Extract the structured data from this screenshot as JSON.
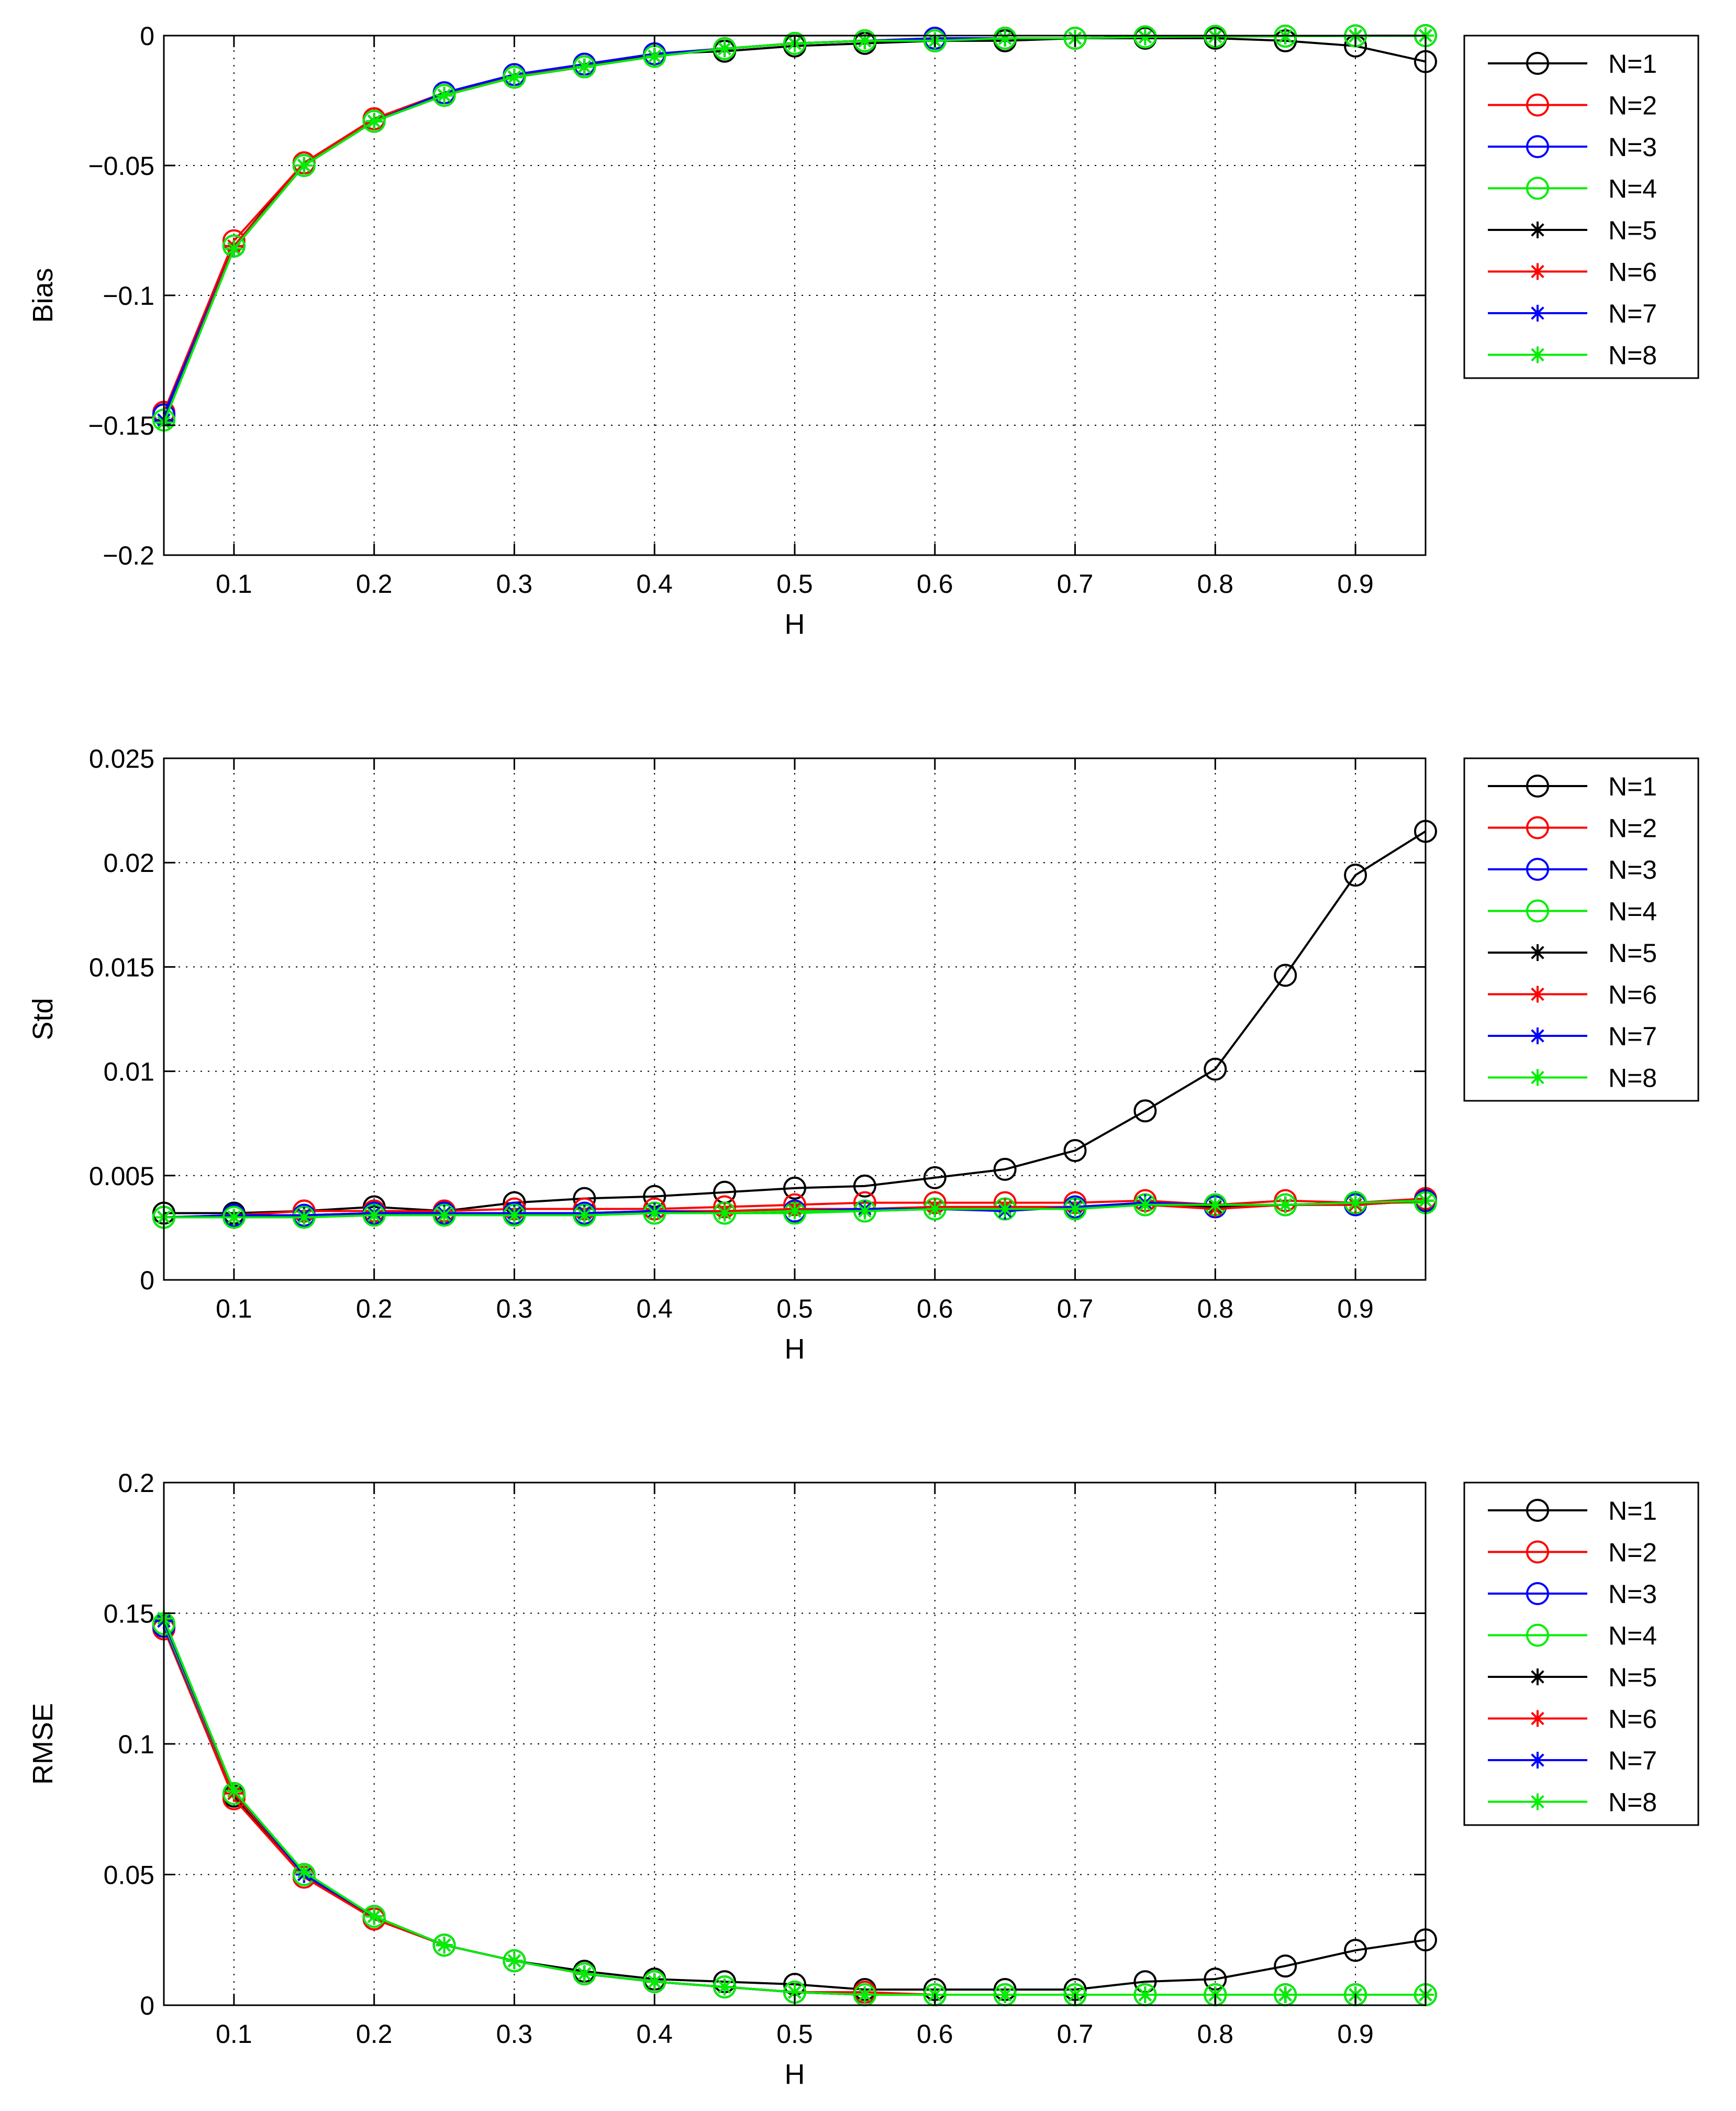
{
  "chart_data": [
    {
      "type": "line",
      "title": "",
      "xlabel": "H",
      "ylabel": "Bias",
      "xlim": [
        0.05,
        0.95
      ],
      "ylim": [
        -0.2,
        0
      ],
      "grid": true,
      "legend_position": "outside-right",
      "x": [
        0.05,
        0.1,
        0.15,
        0.2,
        0.25,
        0.3,
        0.35,
        0.4,
        0.45,
        0.5,
        0.55,
        0.6,
        0.65,
        0.7,
        0.75,
        0.8,
        0.85,
        0.9,
        0.95
      ],
      "xticks": [
        0.1,
        0.2,
        0.3,
        0.4,
        0.5,
        0.6,
        0.7,
        0.8,
        0.9
      ],
      "xtick_labels": [
        "0.1",
        "0.2",
        "0.3",
        "0.4",
        "0.5",
        "0.6",
        "0.7",
        "0.8",
        "0.9"
      ],
      "yticks": [
        -0.2,
        -0.15,
        -0.1,
        -0.05,
        0
      ],
      "ytick_labels": [
        "−0.2",
        "−0.15",
        "−0.1",
        "−0.05",
        "0"
      ],
      "series": [
        {
          "name": "N=1",
          "color": "#000000",
          "marker": "circle",
          "values": [
            -0.146,
            -0.081,
            -0.049,
            -0.032,
            -0.023,
            -0.016,
            -0.012,
            -0.007,
            -0.006,
            -0.004,
            -0.003,
            -0.002,
            -0.002,
            -0.001,
            -0.001,
            -0.001,
            -0.002,
            -0.004,
            -0.01
          ]
        },
        {
          "name": "N=2",
          "color": "#ff0000",
          "marker": "circle",
          "values": [
            -0.145,
            -0.079,
            -0.049,
            -0.032,
            -0.022,
            -0.016,
            -0.011,
            -0.007,
            -0.005,
            -0.003,
            -0.002,
            -0.001,
            -0.001,
            -0.001,
            -0.0005,
            -0.0003,
            -0.0002,
            -0.0001,
            0
          ]
        },
        {
          "name": "N=3",
          "color": "#0000ff",
          "marker": "circle",
          "values": [
            -0.146,
            -0.081,
            -0.05,
            -0.033,
            -0.022,
            -0.015,
            -0.011,
            -0.007,
            -0.005,
            -0.003,
            -0.002,
            -0.001,
            -0.001,
            -0.001,
            -0.0005,
            -0.0003,
            -0.0002,
            -0.0001,
            0
          ]
        },
        {
          "name": "N=4",
          "color": "#00ee00",
          "marker": "circle",
          "values": [
            -0.148,
            -0.081,
            -0.05,
            -0.033,
            -0.023,
            -0.016,
            -0.012,
            -0.008,
            -0.005,
            -0.003,
            -0.002,
            -0.002,
            -0.001,
            -0.001,
            -0.0005,
            -0.0003,
            -0.0002,
            -0.0001,
            0
          ]
        },
        {
          "name": "N=5",
          "color": "#000000",
          "marker": "star",
          "values": [
            -0.148,
            -0.082,
            -0.05,
            -0.033,
            -0.023,
            -0.016,
            -0.012,
            -0.008,
            -0.005,
            -0.003,
            -0.002,
            -0.002,
            -0.001,
            -0.001,
            -0.0005,
            -0.0003,
            -0.0002,
            -0.0001,
            0
          ]
        },
        {
          "name": "N=6",
          "color": "#ff0000",
          "marker": "star",
          "values": [
            -0.148,
            -0.081,
            -0.05,
            -0.033,
            -0.023,
            -0.016,
            -0.012,
            -0.008,
            -0.005,
            -0.003,
            -0.002,
            -0.002,
            -0.001,
            -0.001,
            -0.0005,
            -0.0003,
            -0.0002,
            -0.0001,
            0
          ]
        },
        {
          "name": "N=7",
          "color": "#0000ff",
          "marker": "star",
          "values": [
            -0.148,
            -0.082,
            -0.05,
            -0.033,
            -0.023,
            -0.016,
            -0.012,
            -0.008,
            -0.005,
            -0.003,
            -0.002,
            -0.002,
            -0.001,
            -0.001,
            -0.0005,
            -0.0003,
            -0.0002,
            -0.0001,
            0
          ]
        },
        {
          "name": "N=8",
          "color": "#00ee00",
          "marker": "star",
          "values": [
            -0.149,
            -0.082,
            -0.05,
            -0.033,
            -0.023,
            -0.016,
            -0.012,
            -0.008,
            -0.005,
            -0.003,
            -0.002,
            -0.002,
            -0.001,
            -0.001,
            -0.0005,
            -0.0003,
            -0.0002,
            -0.0001,
            0
          ]
        }
      ]
    },
    {
      "type": "line",
      "title": "",
      "xlabel": "H",
      "ylabel": "Std",
      "xlim": [
        0.05,
        0.95
      ],
      "ylim": [
        0,
        0.025
      ],
      "grid": true,
      "legend_position": "outside-right",
      "x": [
        0.05,
        0.1,
        0.15,
        0.2,
        0.25,
        0.3,
        0.35,
        0.4,
        0.45,
        0.5,
        0.55,
        0.6,
        0.65,
        0.7,
        0.75,
        0.8,
        0.85,
        0.9,
        0.95
      ],
      "xticks": [
        0.1,
        0.2,
        0.3,
        0.4,
        0.5,
        0.6,
        0.7,
        0.8,
        0.9
      ],
      "xtick_labels": [
        "0.1",
        "0.2",
        "0.3",
        "0.4",
        "0.5",
        "0.6",
        "0.7",
        "0.8",
        "0.9"
      ],
      "yticks": [
        0,
        0.005,
        0.01,
        0.015,
        0.02,
        0.025
      ],
      "ytick_labels": [
        "0",
        "0.005",
        "0.01",
        "0.015",
        "0.02",
        "0.025"
      ],
      "series": [
        {
          "name": "N=1",
          "color": "#000000",
          "marker": "circle",
          "values": [
            0.0032,
            0.0032,
            0.0033,
            0.0035,
            0.0033,
            0.0037,
            0.0039,
            0.004,
            0.0042,
            0.0044,
            0.0045,
            0.0049,
            0.0053,
            0.0062,
            0.0081,
            0.0101,
            0.0146,
            0.0194,
            0.0215
          ]
        },
        {
          "name": "N=2",
          "color": "#ff0000",
          "marker": "circle",
          "values": [
            0.003,
            0.0031,
            0.0033,
            0.0033,
            0.0033,
            0.0034,
            0.0034,
            0.0034,
            0.0035,
            0.0036,
            0.0037,
            0.0037,
            0.0037,
            0.0037,
            0.0038,
            0.0036,
            0.0038,
            0.0037,
            0.0039
          ]
        },
        {
          "name": "N=3",
          "color": "#0000ff",
          "marker": "circle",
          "values": [
            0.003,
            0.0031,
            0.0031,
            0.0032,
            0.0032,
            0.0032,
            0.0032,
            0.0032,
            0.0032,
            0.0033,
            0.0033,
            0.0034,
            0.0034,
            0.0035,
            0.0036,
            0.0035,
            0.0036,
            0.0036,
            0.0038
          ]
        },
        {
          "name": "N=4",
          "color": "#00ee00",
          "marker": "circle",
          "values": [
            0.003,
            0.003,
            0.003,
            0.0031,
            0.0031,
            0.0031,
            0.0031,
            0.0032,
            0.0032,
            0.0032,
            0.0033,
            0.0034,
            0.0034,
            0.0034,
            0.0036,
            0.0036,
            0.0036,
            0.0037,
            0.0037
          ]
        },
        {
          "name": "N=5",
          "color": "#000000",
          "marker": "star",
          "values": [
            0.003,
            0.003,
            0.0031,
            0.0031,
            0.0031,
            0.0032,
            0.0032,
            0.0032,
            0.0032,
            0.0033,
            0.0034,
            0.0034,
            0.0034,
            0.0035,
            0.0036,
            0.0035,
            0.0036,
            0.0036,
            0.0038
          ]
        },
        {
          "name": "N=6",
          "color": "#ff0000",
          "marker": "star",
          "values": [
            0.003,
            0.003,
            0.0031,
            0.0032,
            0.0032,
            0.0032,
            0.0032,
            0.0033,
            0.0033,
            0.0034,
            0.0034,
            0.0035,
            0.0035,
            0.0035,
            0.0036,
            0.0034,
            0.0036,
            0.0036,
            0.0038
          ]
        },
        {
          "name": "N=7",
          "color": "#0000ff",
          "marker": "star",
          "values": [
            0.003,
            0.003,
            0.0031,
            0.0032,
            0.0032,
            0.0032,
            0.0032,
            0.0033,
            0.0032,
            0.0033,
            0.0034,
            0.0034,
            0.0033,
            0.0035,
            0.0037,
            0.0036,
            0.0036,
            0.0037,
            0.0038
          ]
        },
        {
          "name": "N=8",
          "color": "#00ee00",
          "marker": "star",
          "values": [
            0.003,
            0.003,
            0.003,
            0.0031,
            0.0031,
            0.0031,
            0.0031,
            0.0032,
            0.0032,
            0.0033,
            0.0033,
            0.0034,
            0.0034,
            0.0034,
            0.0036,
            0.0036,
            0.0036,
            0.0037,
            0.0038
          ]
        }
      ]
    },
    {
      "type": "line",
      "title": "",
      "xlabel": "H",
      "ylabel": "RMSE",
      "xlim": [
        0.05,
        0.95
      ],
      "ylim": [
        0,
        0.2
      ],
      "grid": true,
      "legend_position": "outside-right",
      "x": [
        0.05,
        0.1,
        0.15,
        0.2,
        0.25,
        0.3,
        0.35,
        0.4,
        0.45,
        0.5,
        0.55,
        0.6,
        0.65,
        0.7,
        0.75,
        0.8,
        0.85,
        0.9,
        0.95
      ],
      "xticks": [
        0.1,
        0.2,
        0.3,
        0.4,
        0.5,
        0.6,
        0.7,
        0.8,
        0.9
      ],
      "xtick_labels": [
        "0.1",
        "0.2",
        "0.3",
        "0.4",
        "0.5",
        "0.6",
        "0.7",
        "0.8",
        "0.9"
      ],
      "yticks": [
        0,
        0.05,
        0.1,
        0.15,
        0.2
      ],
      "ytick_labels": [
        "0",
        "0.05",
        "0.1",
        "0.15",
        "0.2"
      ],
      "series": [
        {
          "name": "N=1",
          "color": "#000000",
          "marker": "circle",
          "values": [
            0.145,
            0.08,
            0.05,
            0.033,
            0.023,
            0.017,
            0.013,
            0.01,
            0.009,
            0.008,
            0.006,
            0.006,
            0.006,
            0.006,
            0.009,
            0.01,
            0.015,
            0.021,
            0.025
          ]
        },
        {
          "name": "N=2",
          "color": "#ff0000",
          "marker": "circle",
          "values": [
            0.144,
            0.079,
            0.049,
            0.033,
            0.023,
            0.017,
            0.012,
            0.009,
            0.007,
            0.005,
            0.005,
            0.004,
            0.004,
            0.004,
            0.004,
            0.004,
            0.004,
            0.004,
            0.004
          ]
        },
        {
          "name": "N=3",
          "color": "#0000ff",
          "marker": "circle",
          "values": [
            0.145,
            0.081,
            0.05,
            0.034,
            0.023,
            0.017,
            0.012,
            0.009,
            0.007,
            0.005,
            0.004,
            0.004,
            0.004,
            0.004,
            0.004,
            0.004,
            0.004,
            0.004,
            0.004
          ]
        },
        {
          "name": "N=4",
          "color": "#00ee00",
          "marker": "circle",
          "values": [
            0.146,
            0.081,
            0.05,
            0.034,
            0.023,
            0.017,
            0.012,
            0.009,
            0.007,
            0.005,
            0.004,
            0.004,
            0.004,
            0.004,
            0.004,
            0.004,
            0.004,
            0.004,
            0.004
          ]
        },
        {
          "name": "N=5",
          "color": "#000000",
          "marker": "star",
          "values": [
            0.147,
            0.082,
            0.05,
            0.034,
            0.023,
            0.017,
            0.012,
            0.009,
            0.007,
            0.005,
            0.004,
            0.004,
            0.004,
            0.004,
            0.004,
            0.004,
            0.004,
            0.004,
            0.004
          ]
        },
        {
          "name": "N=6",
          "color": "#ff0000",
          "marker": "star",
          "values": [
            0.147,
            0.081,
            0.05,
            0.034,
            0.023,
            0.017,
            0.012,
            0.009,
            0.007,
            0.005,
            0.004,
            0.004,
            0.004,
            0.004,
            0.004,
            0.004,
            0.004,
            0.004,
            0.004
          ]
        },
        {
          "name": "N=7",
          "color": "#0000ff",
          "marker": "star",
          "values": [
            0.147,
            0.082,
            0.05,
            0.034,
            0.023,
            0.017,
            0.012,
            0.009,
            0.007,
            0.005,
            0.004,
            0.004,
            0.004,
            0.004,
            0.004,
            0.004,
            0.004,
            0.004,
            0.004
          ]
        },
        {
          "name": "N=8",
          "color": "#00ee00",
          "marker": "star",
          "values": [
            0.148,
            0.082,
            0.051,
            0.034,
            0.023,
            0.017,
            0.012,
            0.009,
            0.007,
            0.005,
            0.004,
            0.004,
            0.004,
            0.004,
            0.004,
            0.004,
            0.004,
            0.004,
            0.004
          ]
        }
      ]
    }
  ]
}
